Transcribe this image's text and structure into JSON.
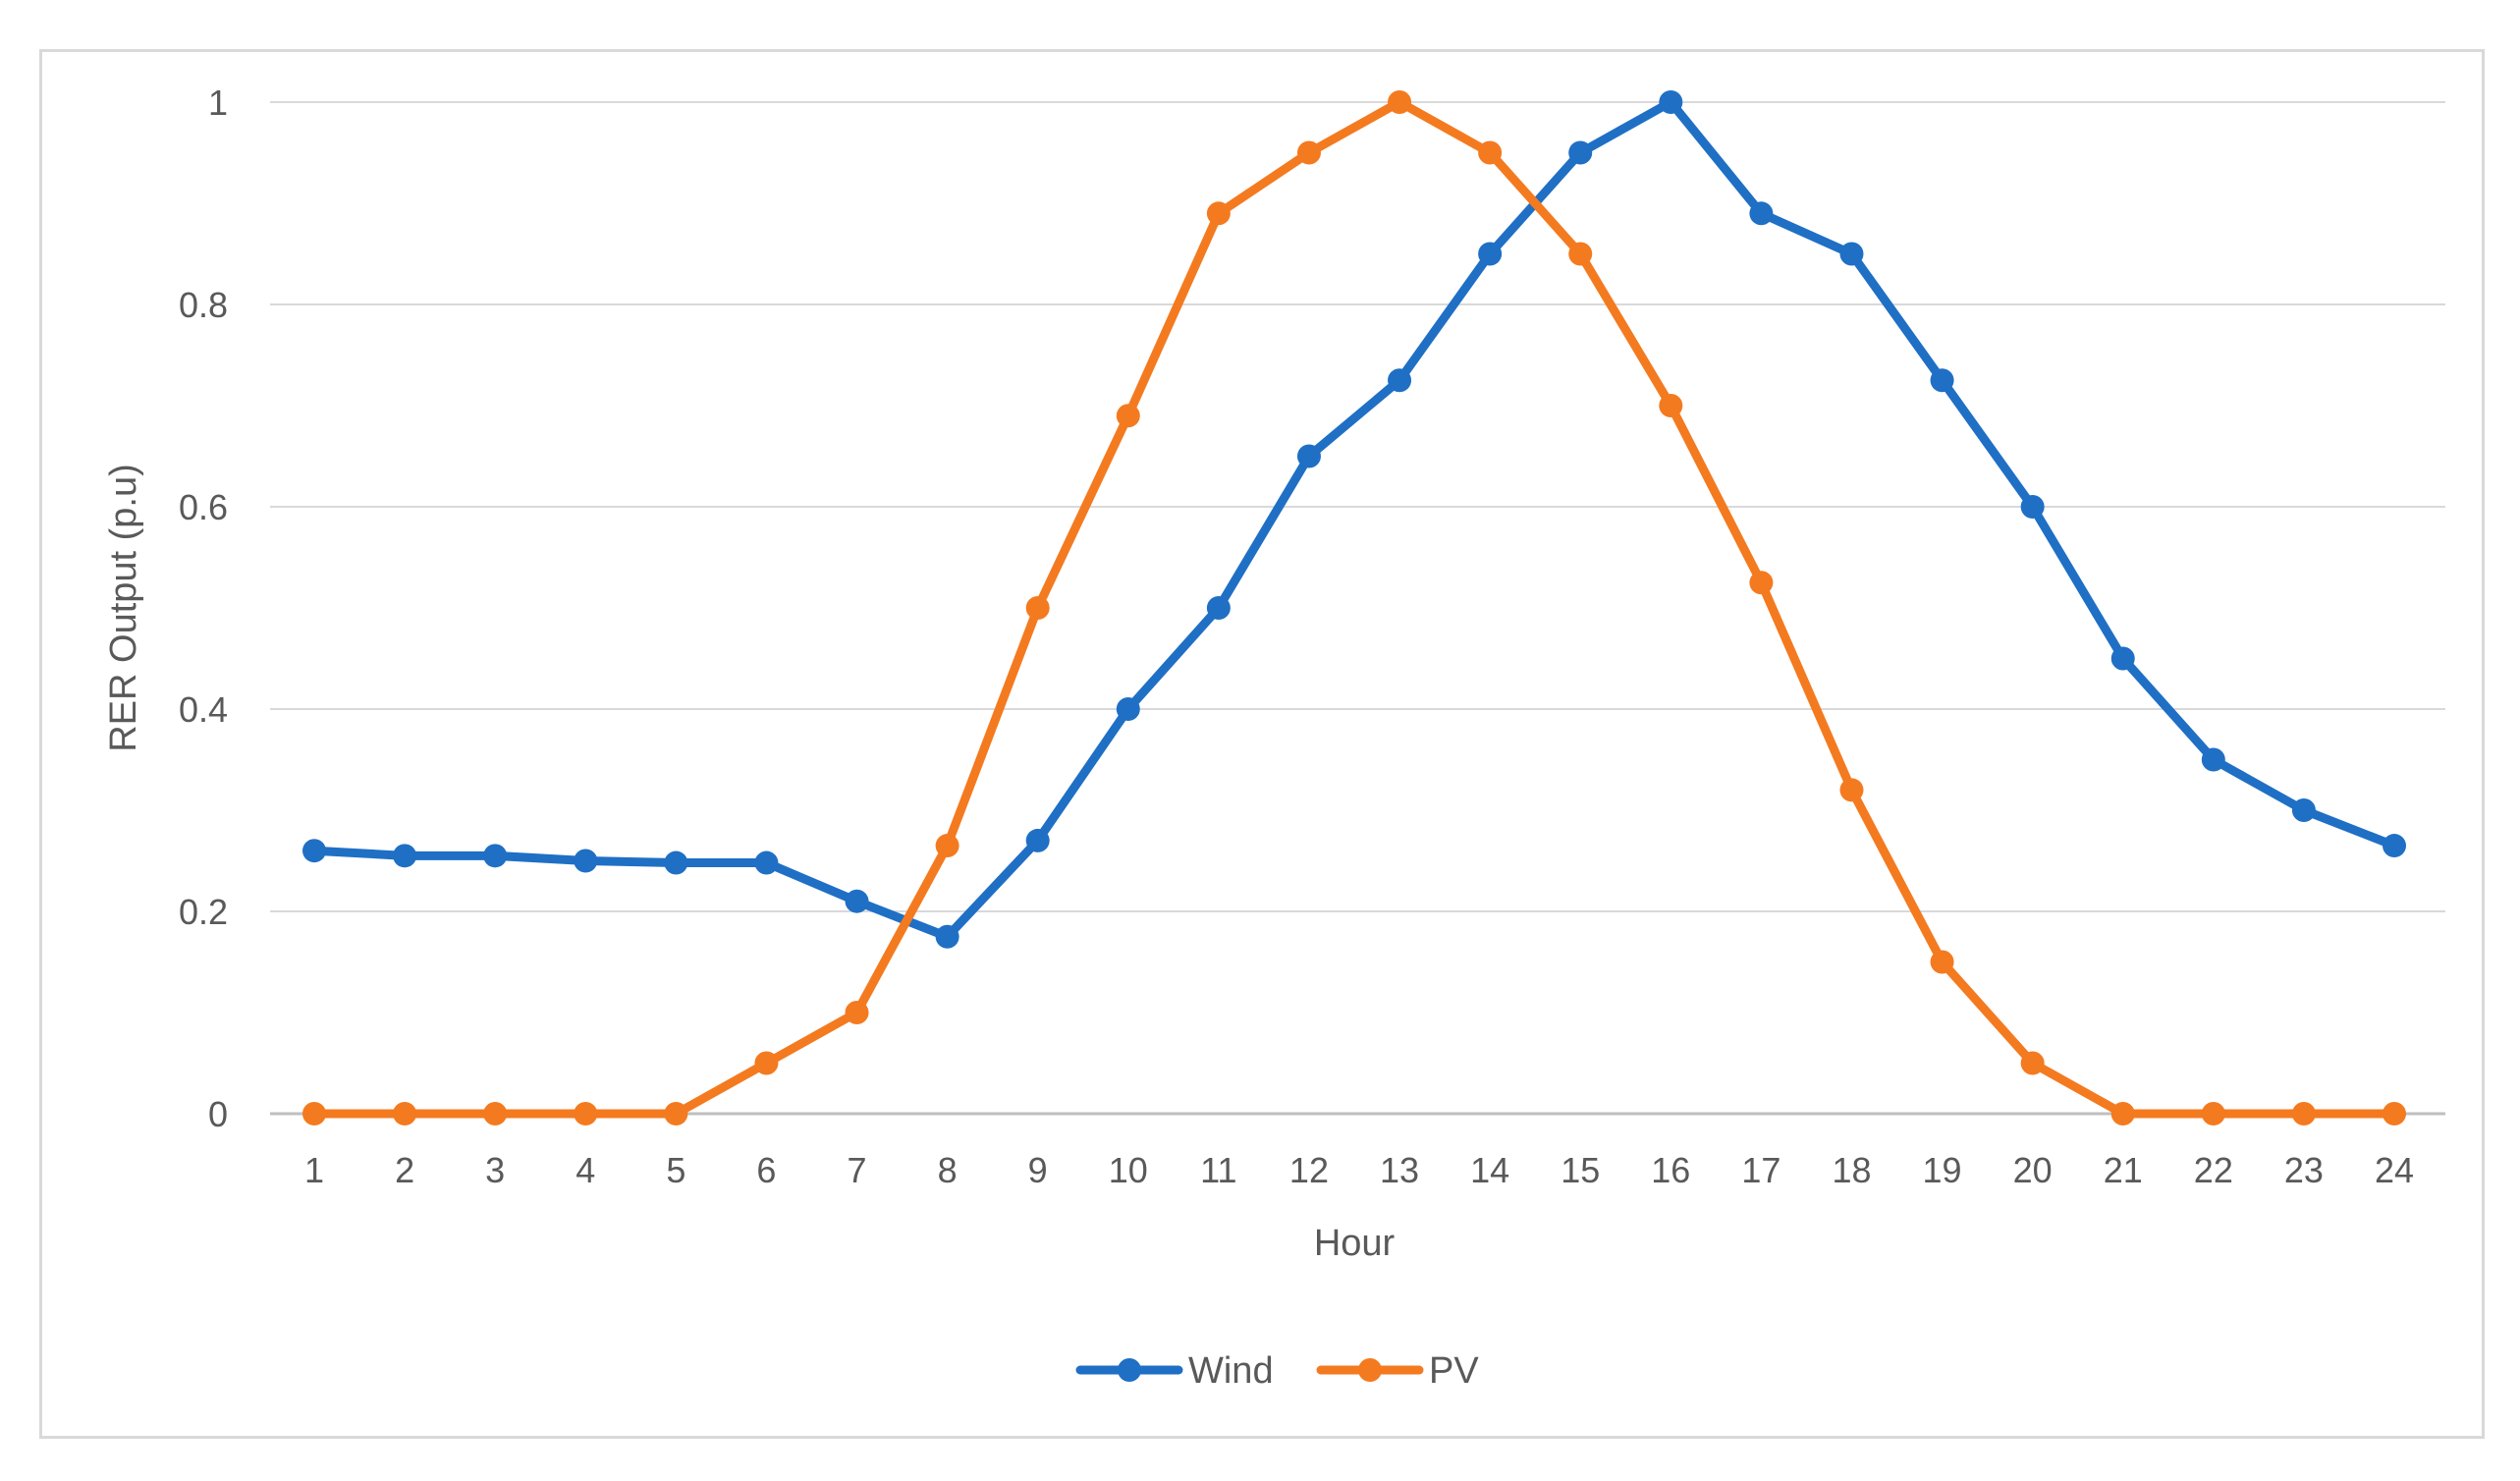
{
  "chart_data": {
    "type": "line",
    "title": "",
    "xlabel": "Hour",
    "ylabel": "RER Output (p.u)",
    "categories": [
      "1",
      "2",
      "3",
      "4",
      "5",
      "6",
      "7",
      "8",
      "9",
      "10",
      "11",
      "12",
      "13",
      "14",
      "15",
      "16",
      "17",
      "18",
      "19",
      "20",
      "21",
      "22",
      "23",
      "24"
    ],
    "ylim": [
      0,
      1
    ],
    "yticks": [
      0,
      0.2,
      0.4,
      0.6,
      0.8,
      1
    ],
    "ytick_labels": [
      "0",
      "0.2",
      "0.4",
      "0.6",
      "0.8",
      "1"
    ],
    "grid": "horizontal",
    "legend_position": "bottom",
    "series": [
      {
        "name": "Wind",
        "color": "#1f6fc5",
        "values": [
          0.26,
          0.255,
          0.255,
          0.25,
          0.248,
          0.248,
          0.21,
          0.175,
          0.27,
          0.4,
          0.5,
          0.65,
          0.725,
          0.85,
          0.95,
          1.0,
          0.89,
          0.85,
          0.725,
          0.6,
          0.45,
          0.35,
          0.3,
          0.265
        ]
      },
      {
        "name": "PV",
        "color": "#f47a20",
        "values": [
          0,
          0,
          0,
          0,
          0,
          0.05,
          0.1,
          0.265,
          0.5,
          0.69,
          0.89,
          0.95,
          1.0,
          0.95,
          0.85,
          0.7,
          0.525,
          0.32,
          0.15,
          0.05,
          0,
          0,
          0,
          0
        ]
      }
    ]
  }
}
